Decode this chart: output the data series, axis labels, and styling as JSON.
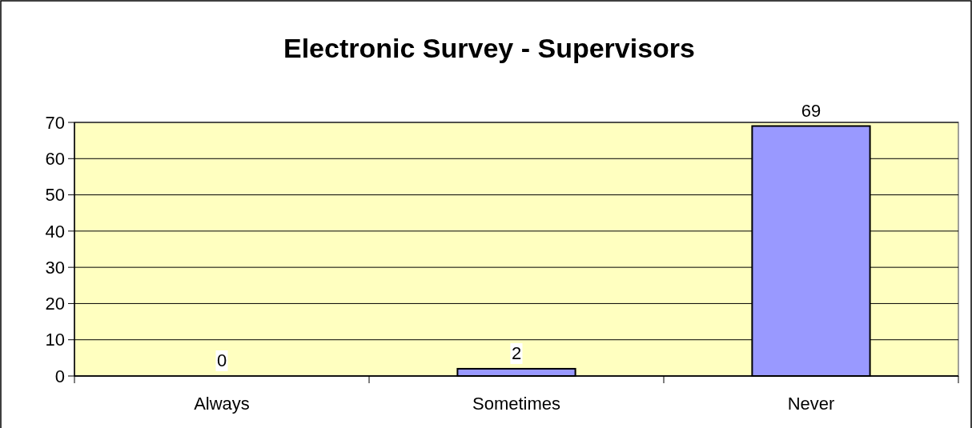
{
  "chart_data": {
    "type": "bar",
    "title": "Electronic Survey - Supervisors",
    "categories": [
      "Always",
      "Sometimes",
      "Never"
    ],
    "values": [
      0,
      2,
      69
    ],
    "color": "#9999ff",
    "ylim": [
      0,
      70
    ],
    "yticks": [
      0,
      10,
      20,
      30,
      40,
      50,
      60,
      70
    ],
    "grid": "y",
    "data_labels": true
  }
}
